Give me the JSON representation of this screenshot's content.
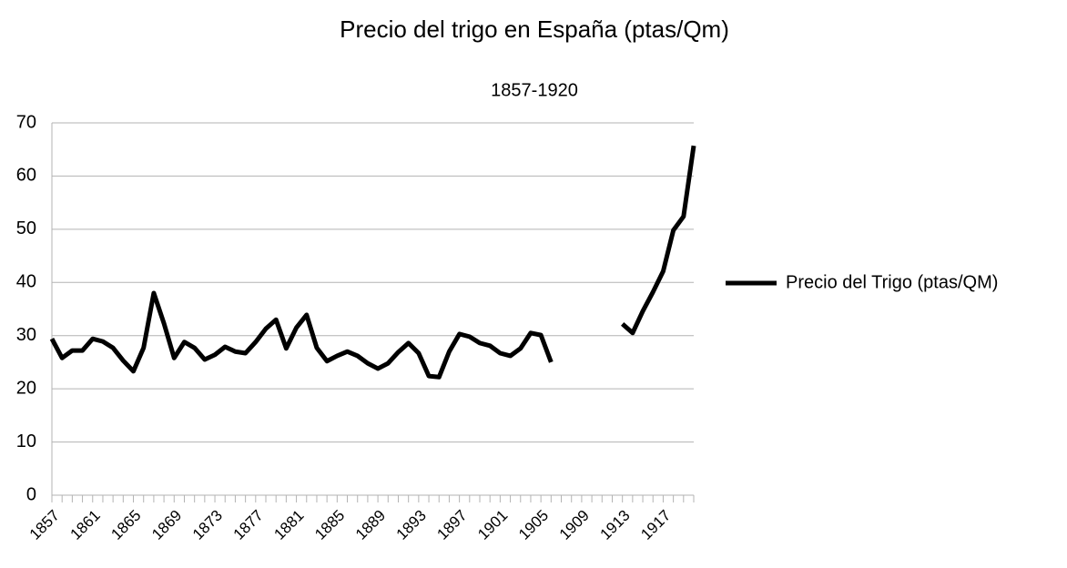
{
  "chart_data": {
    "type": "line",
    "title": "Precio del trigo en España (ptas/Qm)",
    "subtitle": "1857-1920",
    "categories": [
      "1857",
      null,
      null,
      null,
      "1861",
      null,
      null,
      null,
      "1865",
      null,
      null,
      null,
      "1869",
      null,
      null,
      null,
      "1873",
      null,
      null,
      null,
      "1877",
      null,
      null,
      null,
      "1881",
      null,
      null,
      null,
      "1885",
      null,
      null,
      null,
      "1889",
      null,
      null,
      null,
      "1893",
      null,
      null,
      null,
      "1897",
      null,
      null,
      null,
      "1901",
      null,
      null,
      null,
      "1905",
      null,
      null,
      null,
      "1909",
      null,
      null,
      null,
      "1913",
      null,
      null,
      null,
      "1917",
      null,
      null,
      null
    ],
    "series": [
      {
        "name": "Precio del Trigo (ptas/QM)",
        "color": "#000000",
        "values": [
          29.4,
          25.8,
          27.2,
          27.2,
          29.4,
          28.9,
          27.7,
          25.3,
          23.3,
          27.7,
          38.0,
          32.3,
          25.8,
          28.8,
          27.7,
          25.5,
          26.4,
          27.9,
          27.0,
          26.7,
          28.8,
          31.3,
          33.0,
          27.6,
          31.5,
          33.9,
          27.7,
          25.2,
          26.2,
          27.0,
          26.2,
          24.8,
          23.8,
          24.8,
          26.9,
          28.6,
          26.7,
          22.4,
          22.2,
          27.0,
          30.3,
          29.8,
          28.6,
          28.1,
          26.7,
          26.2,
          27.6,
          30.5,
          30.1,
          25.0,
          null,
          null,
          null,
          null,
          null,
          null,
          32.2,
          30.5,
          34.6,
          38.2,
          42.1,
          49.8,
          52.4,
          65.7
        ]
      }
    ],
    "ylim": [
      0,
      70
    ],
    "yticks": [
      0,
      10,
      20,
      30,
      40,
      50,
      60,
      70
    ],
    "grid": true,
    "legend": "right"
  }
}
